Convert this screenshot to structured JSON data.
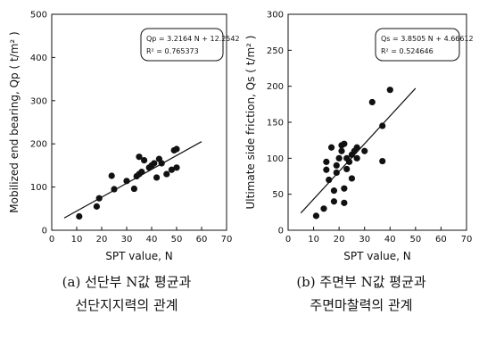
{
  "chart_data": [
    {
      "type": "scatter",
      "xlabel": "SPT value,  N",
      "ylabel": "Mobilized end bearing, Qp ( t/m² )",
      "xlim": [
        0,
        70
      ],
      "ylim": [
        0,
        500
      ],
      "xticks": [
        "0",
        "10",
        "20",
        "30",
        "40",
        "50",
        "60",
        "70"
      ],
      "yticks": [
        "0",
        "100",
        "200",
        "300",
        "400",
        "500"
      ],
      "points": [
        {
          "x": 11,
          "y": 32
        },
        {
          "x": 18,
          "y": 55
        },
        {
          "x": 19,
          "y": 74
        },
        {
          "x": 24,
          "y": 126
        },
        {
          "x": 25,
          "y": 95
        },
        {
          "x": 30,
          "y": 114
        },
        {
          "x": 33,
          "y": 96
        },
        {
          "x": 34,
          "y": 125
        },
        {
          "x": 35,
          "y": 130
        },
        {
          "x": 35,
          "y": 170
        },
        {
          "x": 36,
          "y": 135
        },
        {
          "x": 37,
          "y": 162
        },
        {
          "x": 39,
          "y": 145
        },
        {
          "x": 40,
          "y": 150
        },
        {
          "x": 41,
          "y": 155
        },
        {
          "x": 42,
          "y": 122
        },
        {
          "x": 43,
          "y": 165
        },
        {
          "x": 44,
          "y": 155
        },
        {
          "x": 46,
          "y": 130
        },
        {
          "x": 48,
          "y": 140
        },
        {
          "x": 49,
          "y": 185
        },
        {
          "x": 50,
          "y": 188
        },
        {
          "x": 50,
          "y": 145
        }
      ],
      "fit": {
        "slope": 3.2164,
        "intercept": 12.2542,
        "x_range": [
          5,
          60
        ]
      },
      "annotation": [
        "Qp = 3.2164 N + 12.2542",
        "R² = 0.765373"
      ],
      "grid": false
    },
    {
      "type": "scatter",
      "xlabel": "SPT value,  N",
      "ylabel": "Ultimate side friction, Qs ( t/m² )",
      "xlim": [
        0,
        70
      ],
      "ylim": [
        0,
        300
      ],
      "xticks": [
        "0",
        "10",
        "20",
        "30",
        "40",
        "50",
        "60",
        "70"
      ],
      "yticks": [
        "0",
        "50",
        "100",
        "150",
        "200",
        "250",
        "300"
      ],
      "points": [
        {
          "x": 11,
          "y": 20
        },
        {
          "x": 14,
          "y": 30
        },
        {
          "x": 15,
          "y": 95
        },
        {
          "x": 15,
          "y": 84
        },
        {
          "x": 16,
          "y": 70
        },
        {
          "x": 17,
          "y": 115
        },
        {
          "x": 18,
          "y": 40
        },
        {
          "x": 18,
          "y": 55
        },
        {
          "x": 19,
          "y": 80
        },
        {
          "x": 19,
          "y": 90
        },
        {
          "x": 20,
          "y": 100
        },
        {
          "x": 21,
          "y": 118
        },
        {
          "x": 21,
          "y": 110
        },
        {
          "x": 22,
          "y": 38
        },
        {
          "x": 22,
          "y": 58
        },
        {
          "x": 22,
          "y": 120
        },
        {
          "x": 23,
          "y": 100
        },
        {
          "x": 23,
          "y": 85
        },
        {
          "x": 24,
          "y": 95
        },
        {
          "x": 25,
          "y": 105
        },
        {
          "x": 25,
          "y": 72
        },
        {
          "x": 26,
          "y": 110
        },
        {
          "x": 27,
          "y": 100
        },
        {
          "x": 27,
          "y": 115
        },
        {
          "x": 30,
          "y": 110
        },
        {
          "x": 33,
          "y": 178
        },
        {
          "x": 37,
          "y": 96
        },
        {
          "x": 37,
          "y": 145
        },
        {
          "x": 40,
          "y": 195
        }
      ],
      "fit": {
        "slope": 3.8505,
        "intercept": 4.66612,
        "x_range": [
          5,
          50
        ]
      },
      "annotation": [
        "Qs = 3.8505 N + 4.66612",
        "R² = 0.524646"
      ],
      "grid": false
    }
  ],
  "captions": {
    "a": {
      "line1": "(a) 선단부 N값 평균과",
      "line2": "선단지지력의 관계"
    },
    "b": {
      "line1": "(b) 주면부 N값 평균과",
      "line2": "주면마찰력의 관계"
    }
  }
}
